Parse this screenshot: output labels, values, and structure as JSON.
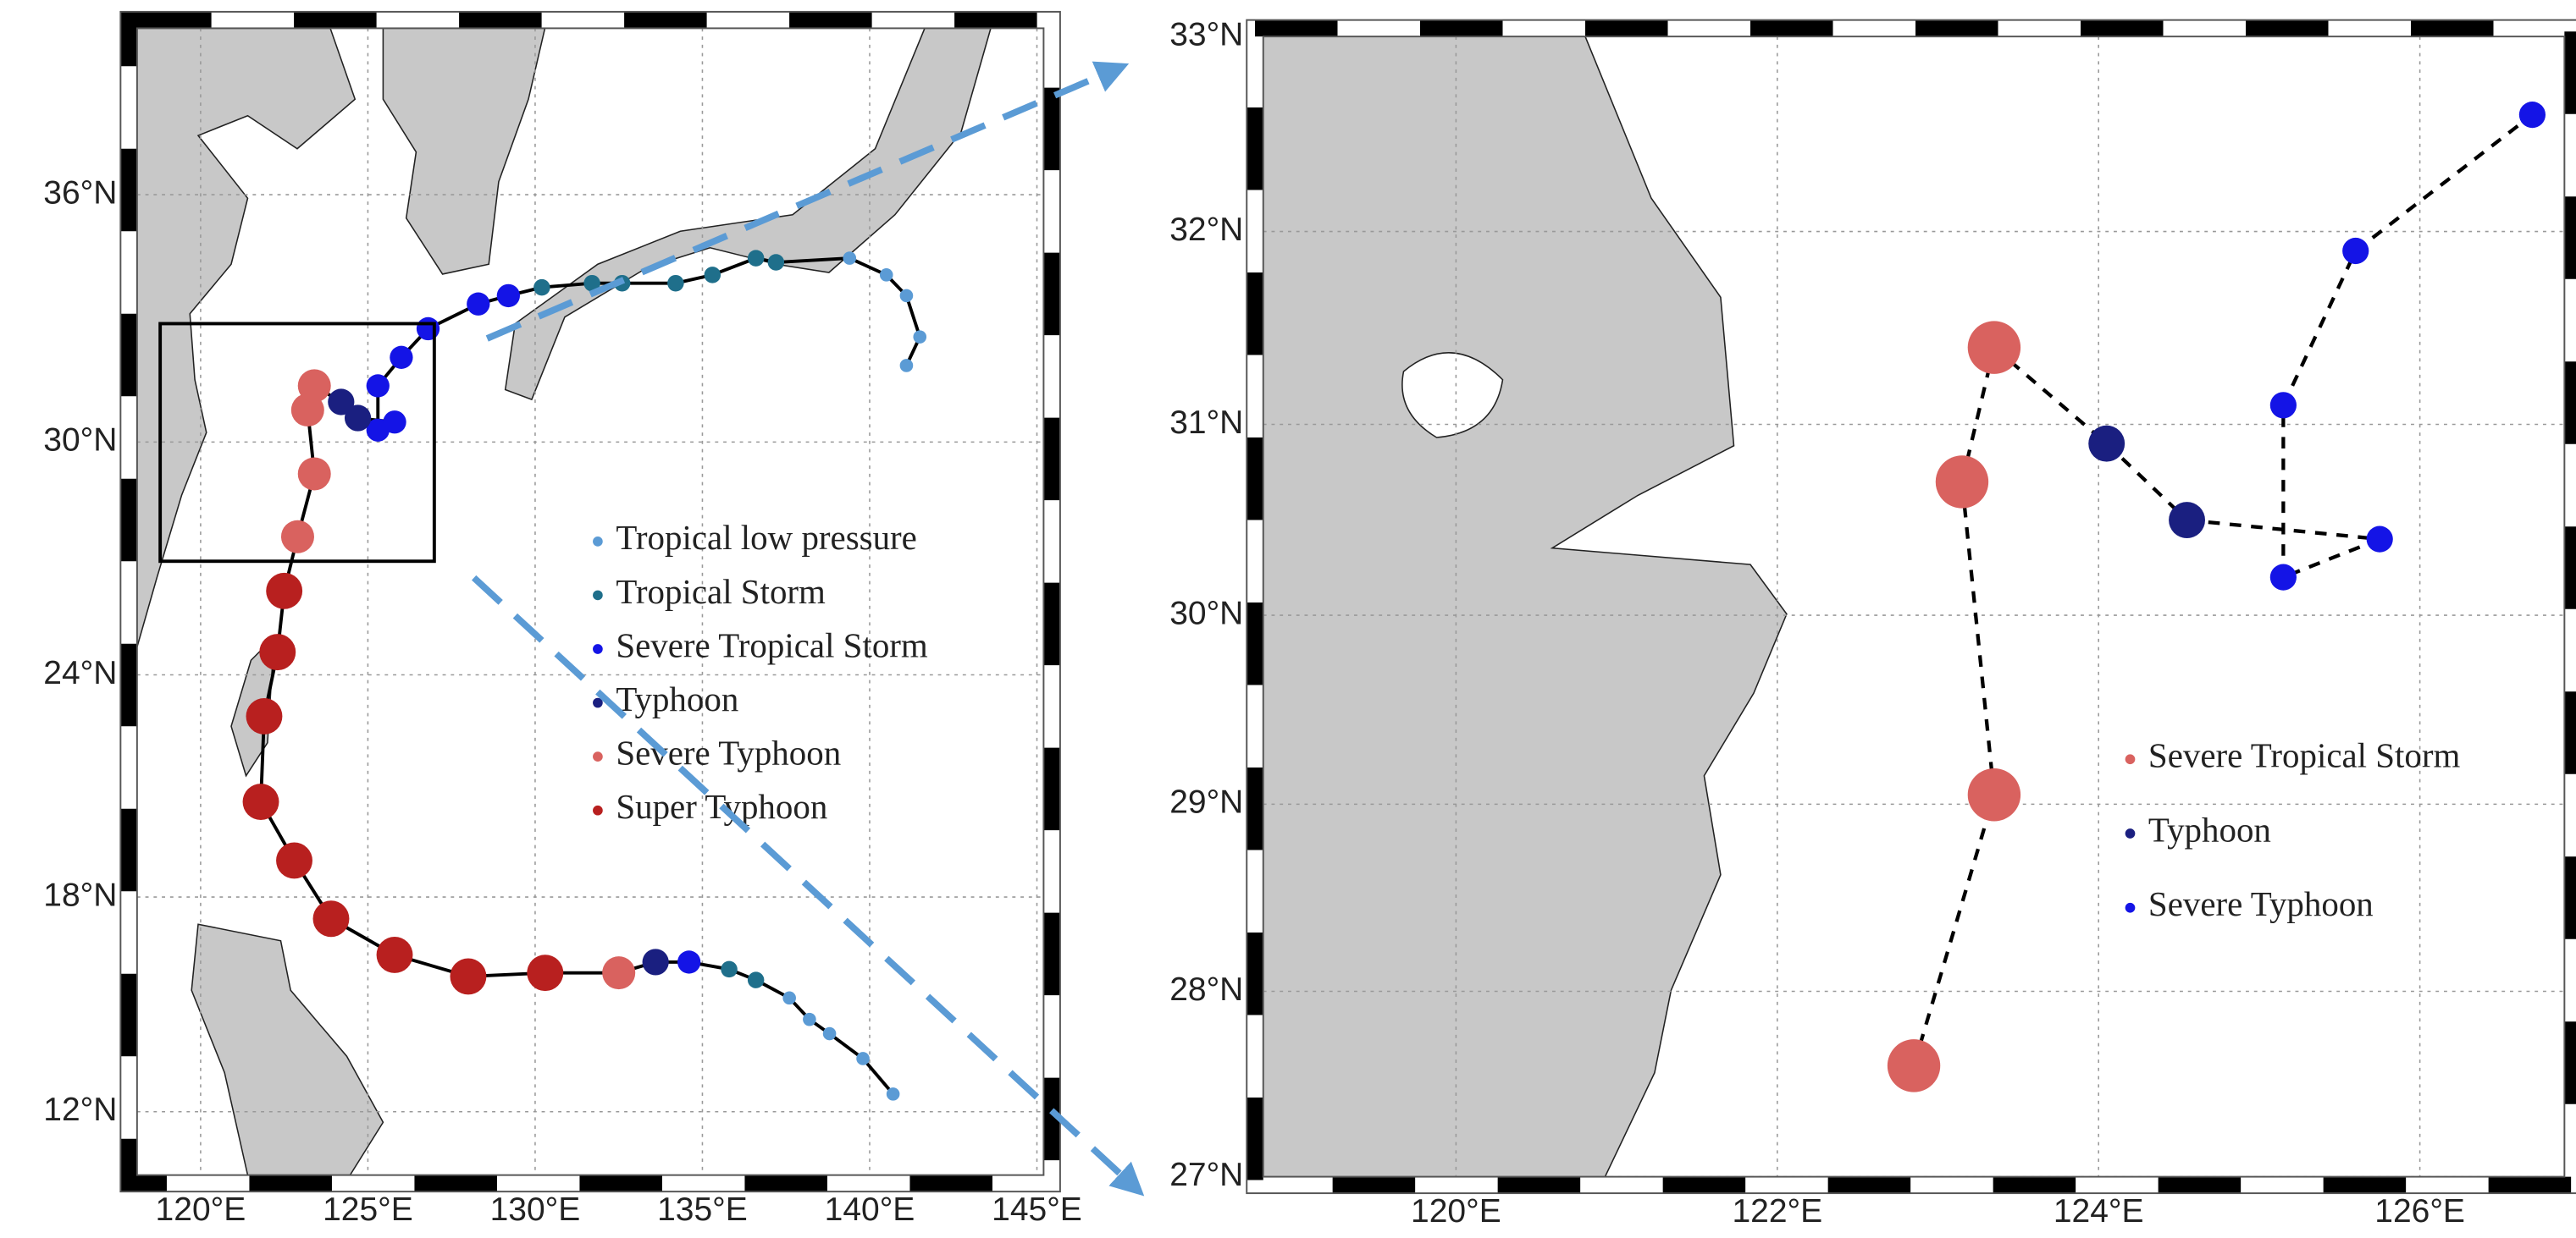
{
  "chart_data": [
    {
      "type": "scatter",
      "xlim": [
        118.1,
        145.2
      ],
      "ylim": [
        10.2,
        39.8
      ],
      "xticks": [
        {
          "value": 120,
          "label": "120°E"
        },
        {
          "value": 125,
          "label": "125°E"
        },
        {
          "value": 130,
          "label": "130°E"
        },
        {
          "value": 135,
          "label": "135°E"
        },
        {
          "value": 140,
          "label": "140°E"
        },
        {
          "value": 145,
          "label": "145°E"
        }
      ],
      "yticks": [
        {
          "value": 12,
          "label": "12°N"
        },
        {
          "value": 18,
          "label": "18°N"
        },
        {
          "value": 24,
          "label": "24°N"
        },
        {
          "value": 30,
          "label": "30°N"
        },
        {
          "value": 36,
          "label": "36°N"
        }
      ],
      "grid": true,
      "x": [
        140.7,
        139.8,
        138.8,
        138.2,
        137.6,
        136.6,
        135.8,
        134.6,
        133.6,
        132.5,
        130.3,
        128.0,
        125.8,
        123.9,
        122.8,
        121.8,
        121.9,
        122.3,
        122.5,
        122.9,
        123.4,
        123.2,
        123.4,
        124.2,
        124.7,
        125.8,
        125.3,
        125.3,
        126.0,
        126.8,
        128.3,
        129.2,
        130.2,
        131.7,
        132.6,
        134.2,
        135.3,
        136.6,
        137.2,
        139.4,
        140.5,
        141.1,
        141.5,
        141.1
      ],
      "series": [
        {
          "name": "Tropical low pressure",
          "color": "#5b9bd5",
          "values": [
            12.5,
            13.5,
            14.2,
            14.6,
            15.2,
            null,
            null,
            null,
            null,
            null,
            null,
            null,
            null,
            null,
            null,
            null,
            null,
            null,
            null,
            null,
            null,
            null,
            null,
            null,
            null,
            null,
            null,
            null,
            null,
            null,
            null,
            null,
            null,
            null,
            null,
            null,
            null,
            null,
            null,
            34.5,
            34.1,
            33.6,
            32.6,
            31.9
          ]
        },
        {
          "name": "Tropical Storm",
          "color": "#1f6f8b",
          "values": [
            null,
            null,
            null,
            null,
            null,
            15.7,
            16.0,
            null,
            null,
            null,
            null,
            null,
            null,
            null,
            null,
            null,
            null,
            null,
            null,
            null,
            null,
            null,
            null,
            null,
            null,
            null,
            null,
            null,
            null,
            null,
            null,
            null,
            33.8,
            33.9,
            33.9,
            33.9,
            34.1,
            34.5,
            34.4,
            null,
            null,
            null,
            null,
            null
          ]
        },
        {
          "name": "Severe Tropical Storm",
          "color": "#1414e6",
          "values": [
            null,
            null,
            null,
            null,
            null,
            null,
            null,
            16.2,
            null,
            null,
            null,
            null,
            null,
            null,
            null,
            null,
            null,
            null,
            null,
            null,
            null,
            null,
            null,
            null,
            null,
            30.5,
            30.3,
            31.4,
            32.1,
            32.8,
            33.4,
            33.6,
            null,
            null,
            null,
            null,
            null,
            null,
            null,
            null,
            null,
            null,
            null,
            null
          ]
        },
        {
          "name": "Typhoon",
          "color": "#1a1f80",
          "values": [
            null,
            null,
            null,
            null,
            null,
            null,
            null,
            null,
            16.2,
            null,
            null,
            null,
            null,
            null,
            null,
            null,
            null,
            null,
            null,
            null,
            null,
            null,
            null,
            31.0,
            30.6,
            null,
            null,
            null,
            null,
            null,
            null,
            null,
            null,
            null,
            null,
            null,
            null,
            null,
            null,
            null,
            null,
            null,
            null,
            null
          ]
        },
        {
          "name": "Severe Typhoon",
          "color": "#d9625f",
          "values": [
            null,
            null,
            null,
            null,
            null,
            null,
            null,
            null,
            null,
            15.9,
            null,
            null,
            null,
            null,
            null,
            null,
            null,
            null,
            null,
            27.6,
            29.2,
            30.8,
            31.4,
            null,
            null,
            null,
            null,
            null,
            null,
            null,
            null,
            null,
            null,
            null,
            null,
            null,
            null,
            null,
            null,
            null,
            null,
            null,
            null,
            null
          ]
        },
        {
          "name": "Super Typhoon",
          "color": "#b8201f",
          "values": [
            null,
            null,
            null,
            null,
            null,
            null,
            null,
            null,
            null,
            null,
            15.9,
            15.8,
            16.4,
            17.4,
            19.0,
            20.6,
            22.9,
            24.6,
            26.2,
            null,
            null,
            null,
            null,
            null,
            null,
            null,
            null,
            null,
            null,
            null,
            null,
            null,
            null,
            null,
            null,
            null,
            null,
            null,
            null,
            null,
            null,
            null,
            null,
            null
          ]
        }
      ]
    },
    {
      "type": "scatter",
      "xlim": [
        118.8,
        126.9
      ],
      "ylim": [
        27,
        33
      ],
      "xticks": [
        {
          "value": 120,
          "label": "120°E"
        },
        {
          "value": 122,
          "label": "122°E"
        },
        {
          "value": 124,
          "label": "124°E"
        },
        {
          "value": 126,
          "label": "126°E"
        }
      ],
      "yticks": [
        {
          "value": 27,
          "label": "27°N"
        },
        {
          "value": 28,
          "label": "28°N"
        },
        {
          "value": 29,
          "label": "29°N"
        },
        {
          "value": 30,
          "label": "30°N"
        },
        {
          "value": 31,
          "label": "31°N"
        },
        {
          "value": 32,
          "label": "32°N"
        },
        {
          "value": 33,
          "label": "33°N"
        }
      ],
      "grid": true,
      "x": [
        122.85,
        123.35,
        123.15,
        123.35,
        124.05,
        124.55,
        125.75,
        125.15,
        125.15,
        125.6,
        126.7
      ],
      "series": [
        {
          "name": "Severe Tropical Storm",
          "color": "#d9625f",
          "values": [
            27.6,
            29.05,
            30.7,
            31.4,
            null,
            null,
            null,
            null,
            null,
            null,
            null
          ]
        },
        {
          "name": "Typhoon",
          "color": "#1a1f80",
          "values": [
            null,
            null,
            null,
            null,
            30.9,
            30.5,
            null,
            null,
            null,
            null,
            null
          ]
        },
        {
          "name": "Severe Typhoon",
          "color": "#1414e6",
          "values": [
            null,
            null,
            null,
            null,
            null,
            null,
            30.4,
            30.2,
            31.1,
            31.9,
            32.6
          ]
        }
      ]
    }
  ]
}
